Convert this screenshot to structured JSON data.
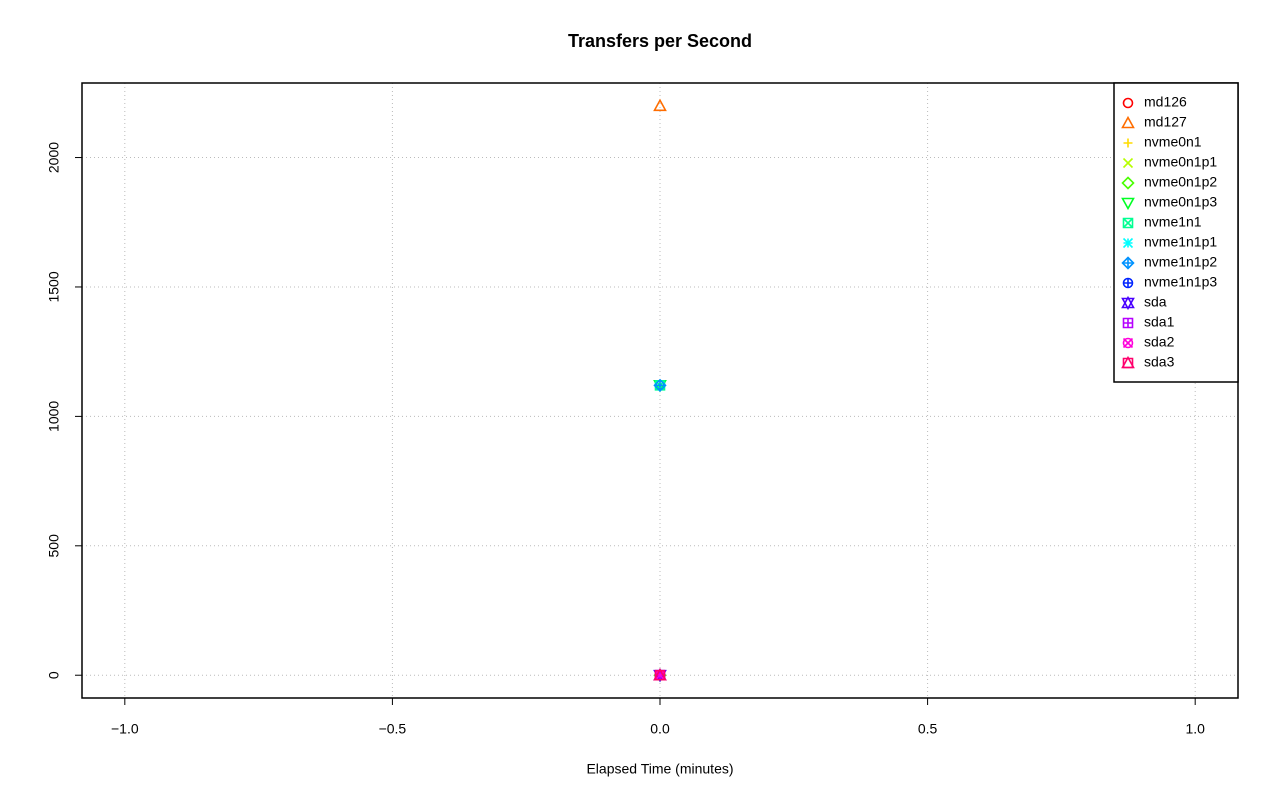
{
  "chart_data": {
    "type": "scatter",
    "title": "Transfers per Second",
    "x_label": "Elapsed Time (minutes)",
    "x": [
      0
    ],
    "series": [
      {
        "name": "md126",
        "color": "#FF0000",
        "marker": "circle",
        "values": [
          0
        ]
      },
      {
        "name": "md127",
        "color": "#FF6D00",
        "marker": "triangle",
        "values": [
          2200
        ]
      },
      {
        "name": "nvme0n1",
        "color": "#FFDB00",
        "marker": "plus",
        "values": [
          1120
        ]
      },
      {
        "name": "nvme0n1p1",
        "color": "#B6FF00",
        "marker": "cross",
        "values": [
          0
        ]
      },
      {
        "name": "nvme0n1p2",
        "color": "#49FF00",
        "marker": "diamond",
        "values": [
          0
        ]
      },
      {
        "name": "nvme0n1p3",
        "color": "#00FF24",
        "marker": "triangle-down",
        "values": [
          1120
        ]
      },
      {
        "name": "nvme1n1",
        "color": "#00FF92",
        "marker": "square-cross",
        "values": [
          1120
        ]
      },
      {
        "name": "nvme1n1p1",
        "color": "#00FFFF",
        "marker": "asterisk",
        "values": [
          0
        ]
      },
      {
        "name": "nvme1n1p2",
        "color": "#0092FF",
        "marker": "diamond-plus",
        "values": [
          1120
        ]
      },
      {
        "name": "nvme1n1p3",
        "color": "#0024FF",
        "marker": "circle-plus",
        "values": [
          0
        ]
      },
      {
        "name": "sda",
        "color": "#4900FF",
        "marker": "star",
        "values": [
          0
        ]
      },
      {
        "name": "sda1",
        "color": "#B600FF",
        "marker": "square-plus",
        "values": [
          0
        ]
      },
      {
        "name": "sda2",
        "color": "#FF00DB",
        "marker": "circle-cross",
        "values": [
          0
        ]
      },
      {
        "name": "sda3",
        "color": "#FF006D",
        "marker": "square-triangle",
        "values": [
          0
        ]
      }
    ],
    "xlim": [
      -1.08,
      1.08
    ],
    "xticks": [
      {
        "value": -1,
        "label": "−1.0"
      },
      {
        "value": -0.5,
        "label": "−0.5"
      },
      {
        "value": 0,
        "label": "0.0"
      },
      {
        "value": 0.5,
        "label": "0.5"
      },
      {
        "value": 1,
        "label": "1.0"
      }
    ],
    "ylim": [
      -88,
      2288
    ],
    "yticks": [
      0,
      500,
      1000,
      1500,
      2000
    ],
    "grid": true,
    "legend": "top-right"
  }
}
